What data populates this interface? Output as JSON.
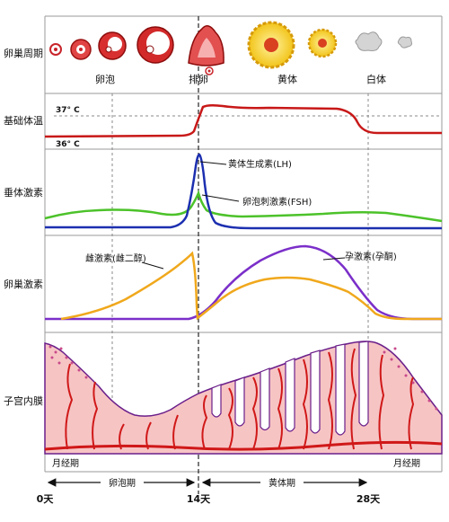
{
  "rows": {
    "ovarian_cycle": "卵巢周期",
    "basal_temp": "基础体温",
    "pituitary": "垂体激素",
    "ovarian_hormone": "卵巢激素",
    "endometrium": "子宫内膜"
  },
  "ovary_stages": {
    "follicle": "卵泡",
    "ovulation": "排卵",
    "corpus_luteum": "黄体",
    "corpus_albicans": "白体"
  },
  "temperature": {
    "high": "37° C",
    "low": "36° C"
  },
  "hormones": {
    "lh": "黄体生成素(LH)",
    "fsh": "卵泡刺激素(FSH)",
    "estrogen": "雌激素(雌二醇)",
    "progesterone": "孕激素(孕酮)"
  },
  "phases": {
    "menstrual_start": "月经期",
    "follicular": "卵泡期",
    "luteal": "黄体期",
    "menstrual_end": "月经期"
  },
  "days": {
    "d0": "0天",
    "d14": "14天",
    "d28": "28天"
  },
  "colors": {
    "temperature": "#c81818",
    "lh": "#1c2fb0",
    "fsh": "#4cc22a",
    "estrogen": "#f0a81c",
    "progesterone": "#7b2fc9",
    "endometrium_fill": "#f7c4c4",
    "endometrium_edge": "#6a1f8a",
    "vessel": "#d01818"
  }
}
